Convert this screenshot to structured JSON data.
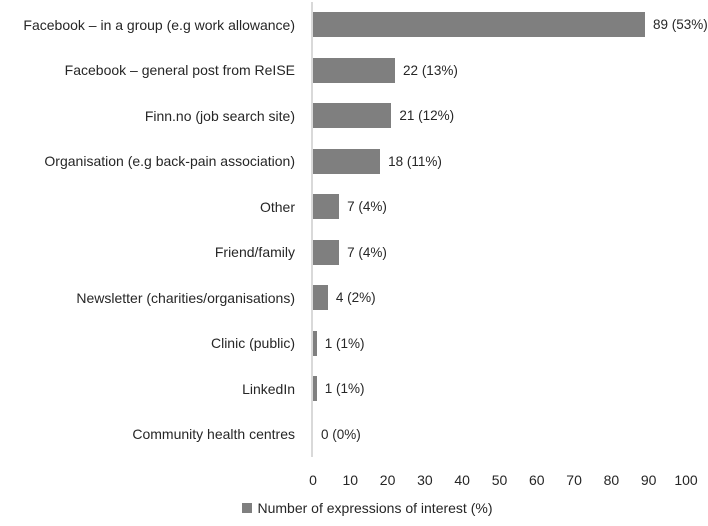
{
  "chart_data": {
    "type": "bar",
    "orientation": "horizontal",
    "title": "",
    "xlabel": "",
    "ylabel": "",
    "xlim": [
      0,
      100
    ],
    "xticks": [
      0,
      10,
      20,
      30,
      40,
      50,
      60,
      70,
      80,
      90,
      100
    ],
    "grid": false,
    "legend_position": "bottom",
    "legend": "Number of expressions of interest (%)",
    "categories": [
      "Facebook – in a group (e.g work allowance)",
      "Facebook – general post from ReISE",
      "Finn.no (job search site)",
      "Organisation (e.g back-pain association)",
      "Other",
      "Friend/family",
      "Newsletter (charities/organisations)",
      "Clinic (public)",
      "LinkedIn",
      "Community health centres"
    ],
    "values": [
      89,
      22,
      21,
      18,
      7,
      7,
      4,
      1,
      1,
      0
    ],
    "percent_values": [
      53,
      13,
      12,
      11,
      4,
      4,
      2,
      1,
      1,
      0
    ],
    "value_labels": [
      "89 (53%)",
      "22 (13%)",
      "21 (12%)",
      "18 (11%)",
      "7 (4%)",
      "7 (4%)",
      "4 (2%)",
      "1 (1%)",
      "1 (1%)",
      "0 (0%)"
    ],
    "colors": {
      "bar": "#7f7f7f",
      "axis_line": "#d9d9d9",
      "text": "#262626"
    }
  }
}
